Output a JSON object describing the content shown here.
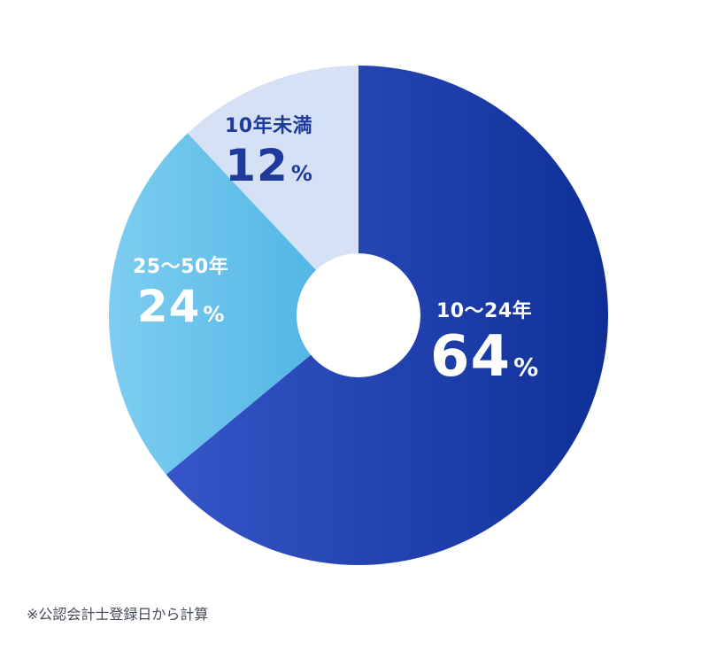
{
  "chart_data": {
    "type": "pie",
    "categories": [
      "10〜24年",
      "25〜50年",
      "10年未満"
    ],
    "values": [
      64,
      24,
      12
    ],
    "value_suffix": "%",
    "colors": {
      "slice_64_start": "#3656c9",
      "slice_64_end": "#0f2f98",
      "slice_24_start": "#7ecdf0",
      "slice_24_end": "#49b2e3",
      "slice_12": "#d6e1f5",
      "label_dark": "#1e3a9a",
      "label_light": "#ffffff"
    },
    "start": "top",
    "direction": "clockwise",
    "style": "donut"
  },
  "labels": [
    {
      "category": "10〜24年",
      "number": "64",
      "unit": "%"
    },
    {
      "category": "25〜50年",
      "number": "24",
      "unit": "%"
    },
    {
      "category": "10年未満",
      "number": "12",
      "unit": "%"
    }
  ],
  "footnote": "※公認会計士登録日から計算"
}
